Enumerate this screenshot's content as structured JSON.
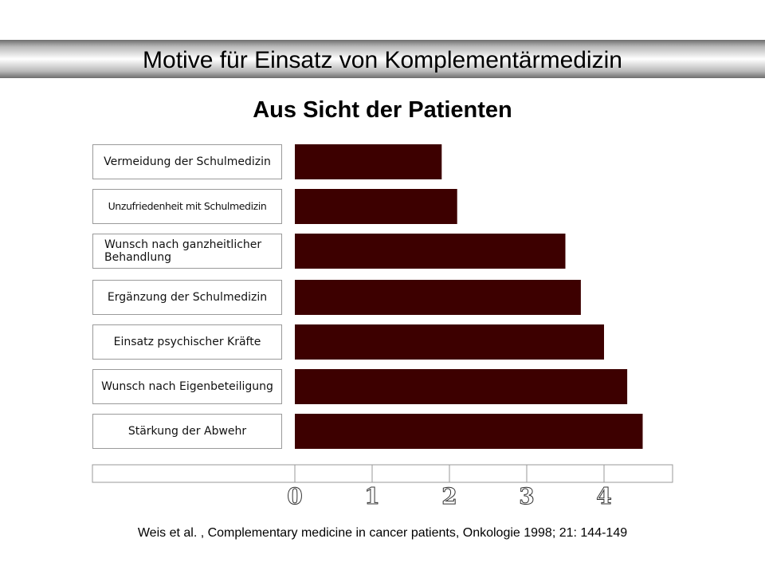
{
  "header": {
    "title": "Motive für Einsatz von Komplementärmedizin",
    "subtitle": "Aus Sicht der Patienten"
  },
  "chart_data": {
    "type": "bar",
    "orientation": "horizontal",
    "categories": [
      "Vermeidung der Schulmedizin",
      "Unzufriedenheit mit Schulmedizin",
      "Wunsch nach ganzheitlicher Behandlung",
      "Ergänzung der Schulmedizin",
      "Einsatz psychischer Kräfte",
      "Wunsch nach Eigenbeteiligung",
      "Stärkung der Abwehr"
    ],
    "values": [
      1.9,
      2.1,
      3.5,
      3.7,
      4.0,
      4.3,
      4.5
    ],
    "xlim": [
      0,
      4.9
    ],
    "xticks": [
      "0",
      "1",
      "2",
      "3",
      "4"
    ],
    "bar_color": "#3d0000",
    "grid": false
  },
  "footer": {
    "citation": "Weis et al. ,  Complementary medicine in cancer patients, Onkologie 1998; 21: 144-149"
  }
}
